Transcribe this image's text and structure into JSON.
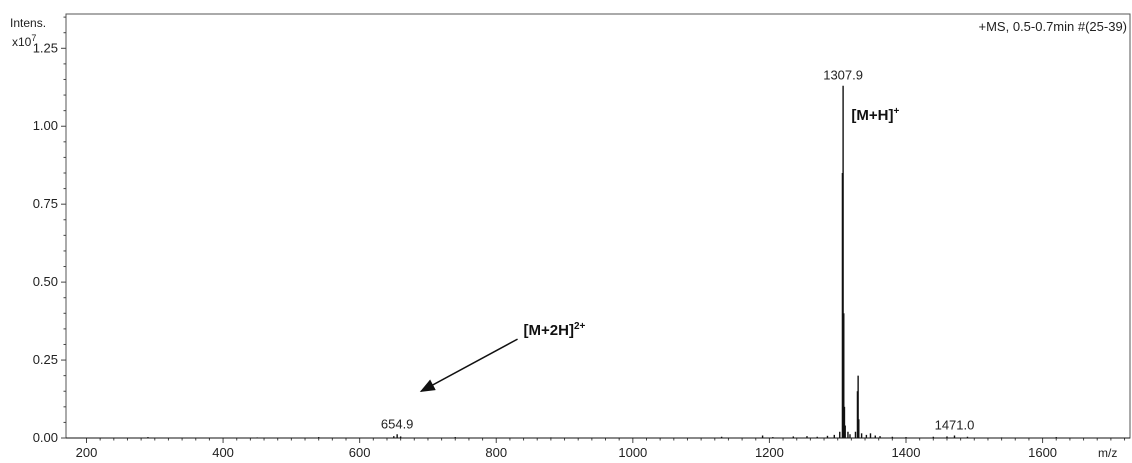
{
  "chart_data": {
    "type": "line",
    "title": "+MS, 0.5-0.7min #(25-39)",
    "ylabel": "Intens.",
    "ylabel_scale": "x10",
    "ylabel_scale_exp": "7",
    "xlabel": "m/z",
    "xlim": [
      170,
      1728
    ],
    "ylim": [
      0,
      1.36
    ],
    "x_ticks": [
      200,
      400,
      600,
      800,
      1000,
      1200,
      1400,
      1600
    ],
    "y_ticks": [
      "0.00",
      "0.25",
      "0.50",
      "0.75",
      "1.00",
      "1.25"
    ],
    "y_tick_values": [
      0,
      0.25,
      0.5,
      0.75,
      1.0,
      1.25
    ],
    "grid": false,
    "peaks": [
      {
        "x": 290,
        "y": 0.003
      },
      {
        "x": 450,
        "y": 0.002
      },
      {
        "x": 540,
        "y": 0.003
      },
      {
        "x": 650,
        "y": 0.006
      },
      {
        "x": 654.9,
        "y": 0.012
      },
      {
        "x": 660,
        "y": 0.005
      },
      {
        "x": 740,
        "y": 0.003
      },
      {
        "x": 880,
        "y": 0.002
      },
      {
        "x": 1130,
        "y": 0.004
      },
      {
        "x": 1190,
        "y": 0.008
      },
      {
        "x": 1205,
        "y": 0.003
      },
      {
        "x": 1235,
        "y": 0.005
      },
      {
        "x": 1255,
        "y": 0.006
      },
      {
        "x": 1270,
        "y": 0.004
      },
      {
        "x": 1285,
        "y": 0.007
      },
      {
        "x": 1295,
        "y": 0.01
      },
      {
        "x": 1303,
        "y": 0.02
      },
      {
        "x": 1306.9,
        "y": 0.85
      },
      {
        "x": 1307.9,
        "y": 1.13
      },
      {
        "x": 1308.9,
        "y": 0.4
      },
      {
        "x": 1309.9,
        "y": 0.1
      },
      {
        "x": 1311,
        "y": 0.04
      },
      {
        "x": 1315,
        "y": 0.02
      },
      {
        "x": 1318,
        "y": 0.012
      },
      {
        "x": 1326,
        "y": 0.02
      },
      {
        "x": 1328.9,
        "y": 0.15
      },
      {
        "x": 1329.9,
        "y": 0.2
      },
      {
        "x": 1330.9,
        "y": 0.06
      },
      {
        "x": 1335,
        "y": 0.015
      },
      {
        "x": 1342,
        "y": 0.01
      },
      {
        "x": 1348,
        "y": 0.015
      },
      {
        "x": 1355,
        "y": 0.008
      },
      {
        "x": 1362,
        "y": 0.006
      },
      {
        "x": 1380,
        "y": 0.004
      },
      {
        "x": 1400,
        "y": 0.003
      },
      {
        "x": 1440,
        "y": 0.004
      },
      {
        "x": 1460,
        "y": 0.005
      },
      {
        "x": 1471.0,
        "y": 0.008
      },
      {
        "x": 1490,
        "y": 0.004
      },
      {
        "x": 1540,
        "y": 0.002
      },
      {
        "x": 1620,
        "y": 0.003
      }
    ],
    "peak_labels": [
      {
        "text": "1307.9",
        "x": 1307.9,
        "y": 1.13
      },
      {
        "text": "654.9",
        "x": 654.9,
        "y": 0.012
      },
      {
        "text": "1471.0",
        "x": 1471.0,
        "y": 0.008
      }
    ],
    "annotations": [
      {
        "text": "[M+H]",
        "sup": "+",
        "x": 1320,
        "y": 1.02
      },
      {
        "text": "[M+2H]",
        "sup": "2+",
        "x": 840,
        "y": 0.33,
        "arrow_to": {
          "x": 690,
          "y": 0.15
        }
      }
    ]
  }
}
